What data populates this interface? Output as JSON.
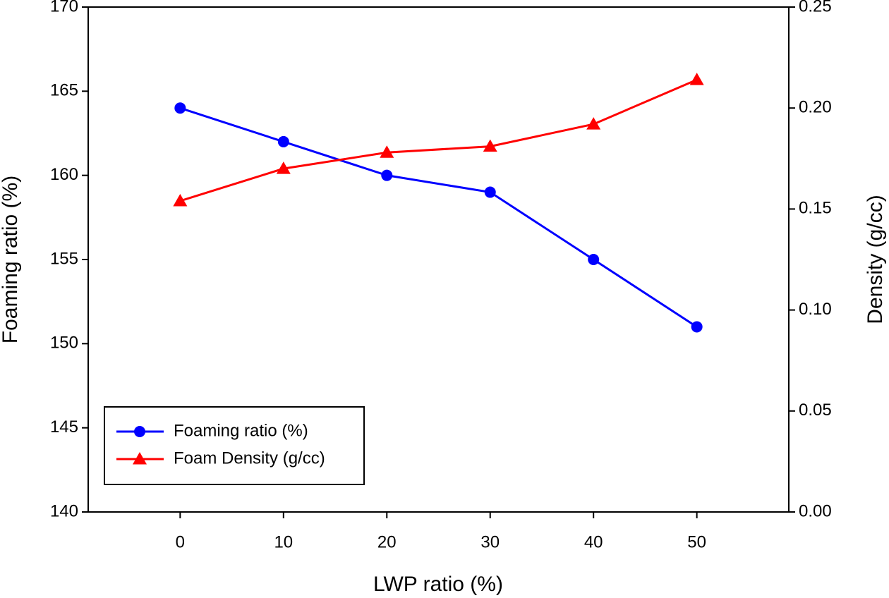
{
  "chart_data": {
    "type": "line",
    "x_label": "LWP ratio (%)",
    "y_label": "Foaming ratio (%)",
    "y2_label": "Density (g/cc)",
    "x": [
      0,
      10,
      20,
      30,
      40,
      50
    ],
    "xlim": [
      -8.9,
      58.9
    ],
    "xticks": [
      0,
      10,
      20,
      30,
      40,
      50
    ],
    "ylim": [
      140,
      170
    ],
    "yticks": [
      140,
      145,
      150,
      155,
      160,
      165,
      170
    ],
    "y2lim": [
      0,
      0.25
    ],
    "y2ticks": [
      {
        "value": 0,
        "label": "0.00"
      },
      0.05,
      {
        "value": 0.1,
        "label": "0.10"
      },
      0.15,
      {
        "value": 0.2,
        "label": "0.20"
      },
      0.25
    ],
    "grid": false,
    "legend_position": "lower left",
    "series": [
      {
        "name": "Foaming ratio (%)",
        "color": "#0000ff",
        "marker": "circle",
        "values": [
          164,
          162,
          160,
          159,
          155,
          151
        ]
      },
      {
        "name": "Foam Density (g/cc)",
        "color": "#ff0000",
        "marker": "triangle",
        "axis": "y2",
        "values": [
          0.154,
          0.17,
          0.178,
          0.181,
          0.192,
          0.214
        ]
      }
    ]
  }
}
